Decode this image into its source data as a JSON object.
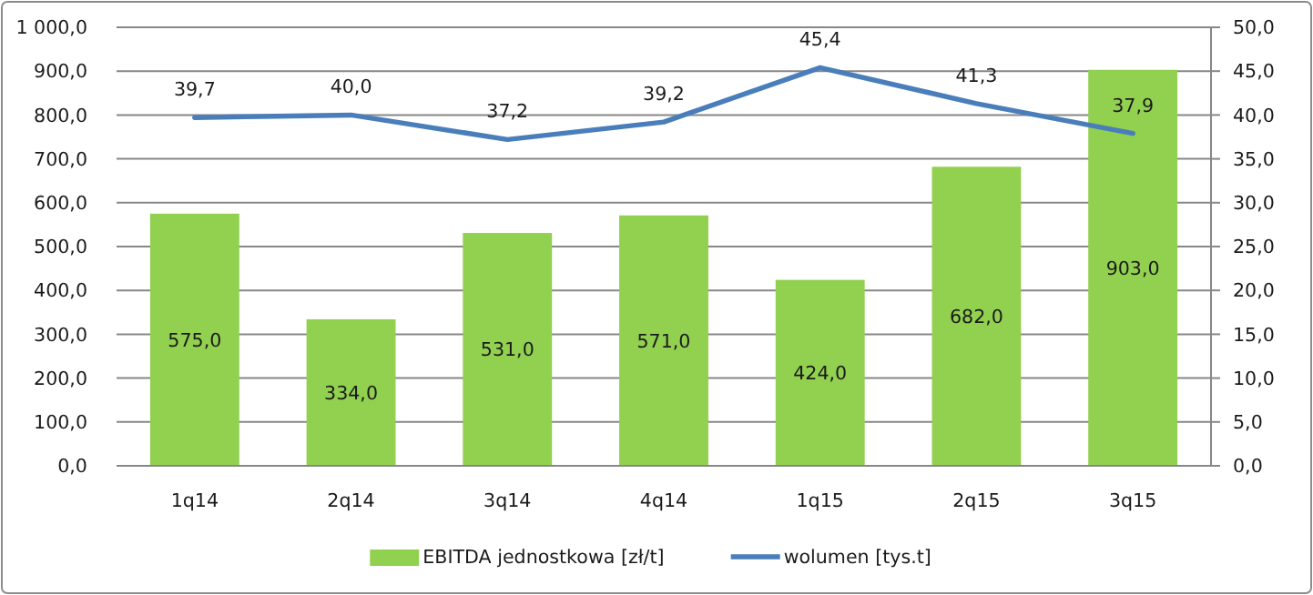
{
  "chart_data": {
    "type": "bar",
    "categories": [
      "1q14",
      "2q14",
      "3q14",
      "4q14",
      "1q15",
      "2q15",
      "3q15"
    ],
    "series": [
      {
        "name": "EBITDA jednostkowa [zł/t]",
        "color": "#92d050",
        "values": [
          575,
          334,
          531,
          571,
          424,
          682,
          903
        ],
        "value_labels": [
          "575,0",
          "334,0",
          "531,0",
          "571,0",
          "424,0",
          "682,0",
          "903,0"
        ]
      },
      {
        "name": "wolumen [tys.t]",
        "type": "line",
        "axis": "y2",
        "color": "#4a7ebb",
        "values": [
          39.7,
          40.0,
          37.2,
          39.2,
          45.4,
          41.3,
          37.9
        ],
        "value_labels": [
          "39,7",
          "40,0",
          "37,2",
          "39,2",
          "45,4",
          "41,3",
          "37,9"
        ]
      }
    ],
    "ylim": [
      0,
      1000
    ],
    "yticks": [
      {
        "value": 0,
        "label": "0,0"
      },
      {
        "value": 100,
        "label": "100,0"
      },
      {
        "value": 200,
        "label": "200,0"
      },
      {
        "value": 300,
        "label": "300,0"
      },
      {
        "value": 400,
        "label": "400,0"
      },
      {
        "value": 500,
        "label": "500,0"
      },
      {
        "value": 600,
        "label": "600,0"
      },
      {
        "value": 700,
        "label": "700,0"
      },
      {
        "value": 800,
        "label": "800,0"
      },
      {
        "value": 900,
        "label": "900,0"
      },
      {
        "value": 1000,
        "label": "1 000,0"
      }
    ],
    "y2lim": [
      0,
      50
    ],
    "y2ticks": [
      {
        "value": 0,
        "label": "0,0"
      },
      {
        "value": 5,
        "label": "5,0"
      },
      {
        "value": 10,
        "label": "10,0"
      },
      {
        "value": 15,
        "label": "15,0"
      },
      {
        "value": 20,
        "label": "20,0"
      },
      {
        "value": 25,
        "label": "25,0"
      },
      {
        "value": 30,
        "label": "30,0"
      },
      {
        "value": 35,
        "label": "35,0"
      },
      {
        "value": 40,
        "label": "40,0"
      },
      {
        "value": 45,
        "label": "45,0"
      },
      {
        "value": 50,
        "label": "50,0"
      }
    ],
    "grid": "y",
    "legend": "bottom"
  }
}
